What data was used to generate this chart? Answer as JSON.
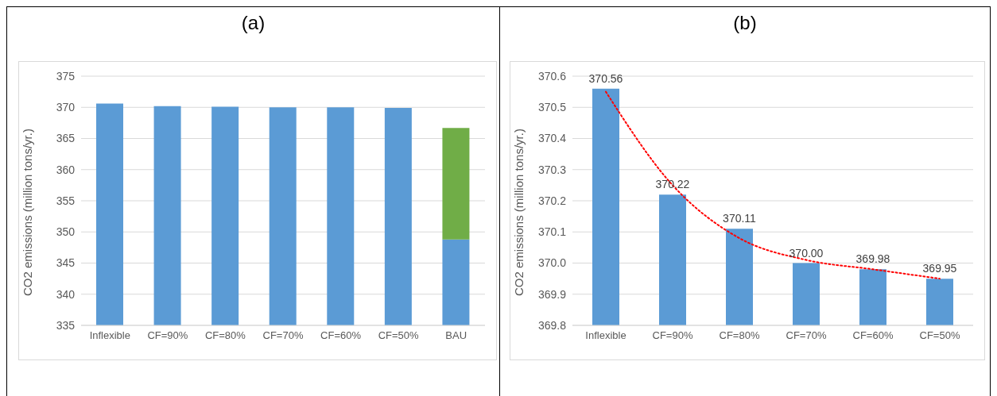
{
  "chart_data": [
    {
      "type": "bar",
      "title": "(a)",
      "ylabel": "CO2 emissions (million tons/yr.)",
      "categories": [
        "Inflexible",
        "CF=90%",
        "CF=80%",
        "CF=70%",
        "CF=60%",
        "CF=50%",
        "BAU"
      ],
      "series": [
        {
          "color": "#5b9bd5",
          "values": [
            370.6,
            370.2,
            370.1,
            370.0,
            370.0,
            369.9,
            348.8
          ]
        },
        {
          "color": "#70ad47",
          "values": [
            null,
            null,
            null,
            null,
            null,
            null,
            17.9
          ],
          "base": [
            null,
            null,
            null,
            null,
            null,
            null,
            348.8
          ]
        }
      ],
      "ylim": [
        335,
        375
      ],
      "yticks": [
        335,
        340,
        345,
        350,
        355,
        360,
        365,
        370,
        375
      ],
      "grid": "y",
      "legend": false
    },
    {
      "type": "bar",
      "title": "(b)",
      "ylabel": "CO2 emissions (million tons/yr.)",
      "categories": [
        "Inflexible",
        "CF=90%",
        "CF=80%",
        "CF=70%",
        "CF=60%",
        "CF=50%"
      ],
      "series": [
        {
          "color": "#5b9bd5",
          "values": [
            370.56,
            370.22,
            370.11,
            370.0,
            369.98,
            369.95
          ],
          "value_labels": [
            "370.56",
            "370.22",
            "370.11",
            "370.00",
            "369.98",
            "369.95"
          ]
        },
        {
          "type": "line",
          "color": "#ff0000",
          "line_style": "dotted",
          "values": [
            370.55,
            370.25,
            370.08,
            370.01,
            369.98,
            369.95
          ]
        }
      ],
      "ylim": [
        369.8,
        370.6
      ],
      "yticks": [
        {
          "value": 369.8,
          "label": "369.8"
        },
        {
          "value": 369.9,
          "label": "369.9"
        },
        {
          "value": 370.0,
          "label": "370.0"
        },
        {
          "value": 370.1,
          "label": "370.1"
        },
        {
          "value": 370.2,
          "label": "370.2"
        },
        {
          "value": 370.3,
          "label": "370.3"
        },
        {
          "value": 370.4,
          "label": "370.4"
        },
        {
          "value": 370.5,
          "label": "370.5"
        },
        {
          "value": 370.6,
          "label": "370.6"
        }
      ],
      "grid": "y",
      "legend": false
    }
  ]
}
